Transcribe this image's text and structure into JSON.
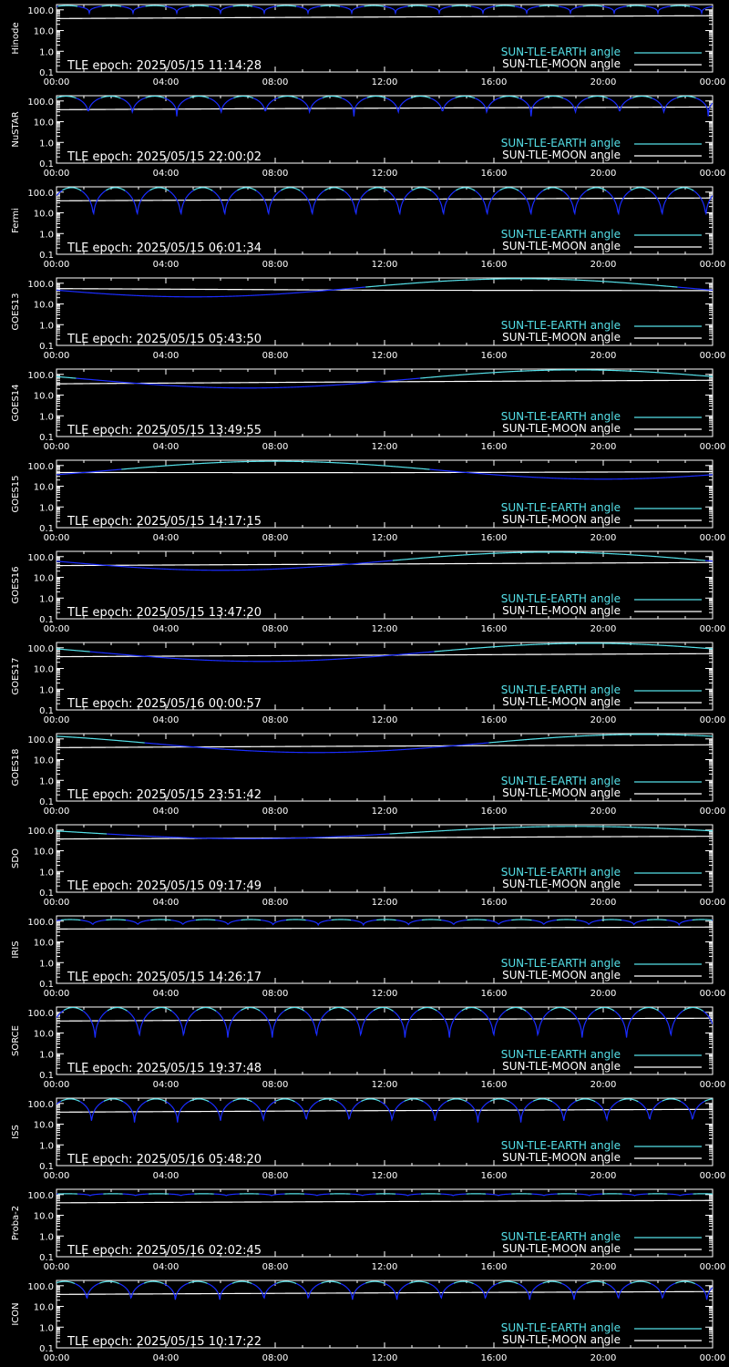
{
  "chart_data": {
    "type": "line",
    "x_unit": "hours (UT) on 2025-05-15",
    "x_ticks": [
      "00:00",
      "04:00",
      "08:00",
      "12:00",
      "16:00",
      "20:00",
      "00:00"
    ],
    "y_scale": "log",
    "y_ticks": [
      "100.0",
      "10.0",
      "1.0",
      "0.1"
    ],
    "ylim": [
      0.1,
      180
    ],
    "legend": {
      "placement": "bottom-right",
      "earth_label": "SUN-TLE-EARTH angle",
      "moon_label": "SUN-TLE-MOON angle"
    },
    "colors": {
      "earth_day": "#55e0e8",
      "earth_night": "#1a2cff",
      "moon": "#ffffff",
      "frame": "#ffffff",
      "background": "#000000"
    },
    "panels": [
      {
        "satellite": "Hinode",
        "epoch": "TLE epoch: 2025/05/15 11:14:28",
        "earth": {
          "model": "orbit",
          "period_h": 1.6,
          "phase_h": 0.4,
          "max": 160,
          "min": 70
        },
        "moon": [
          [
            0,
            38
          ],
          [
            12,
            45
          ],
          [
            24,
            52
          ]
        ]
      },
      {
        "satellite": "NuSTAR",
        "epoch": "TLE epoch: 2025/05/15 22:00:02",
        "earth": {
          "model": "orbit",
          "period_h": 1.62,
          "phase_h": 0.35,
          "max": 170,
          "min": 18
        },
        "moon": [
          [
            0,
            38
          ],
          [
            12,
            45
          ],
          [
            24,
            51
          ]
        ]
      },
      {
        "satellite": "Fermi",
        "epoch": "TLE epoch: 2025/05/15 06:01:34",
        "earth": {
          "model": "orbit",
          "period_h": 1.6,
          "phase_h": 0.55,
          "max": 165,
          "min": 3.5
        },
        "moon": [
          [
            0,
            38
          ],
          [
            12,
            45
          ],
          [
            24,
            52
          ]
        ]
      },
      {
        "satellite": "GOES13",
        "epoch": "TLE epoch: 2025/05/15 05:43:50",
        "earth": {
          "model": "daily",
          "min_time_h": 5.0,
          "max": 165,
          "min": 22
        },
        "moon": [
          [
            0,
            55
          ],
          [
            12,
            46
          ],
          [
            24,
            44
          ]
        ]
      },
      {
        "satellite": "GOES14",
        "epoch": "TLE epoch: 2025/05/15 13:49:55",
        "earth": {
          "model": "daily",
          "min_time_h": 7.0,
          "max": 165,
          "min": 22
        },
        "moon": [
          [
            0,
            35
          ],
          [
            12,
            44
          ],
          [
            24,
            52
          ]
        ]
      },
      {
        "satellite": "GOES15",
        "epoch": "TLE epoch: 2025/05/15 14:17:15",
        "earth": {
          "model": "daily",
          "min_time_h": 20.0,
          "max": 160,
          "min": 22
        },
        "moon": [
          [
            0,
            46
          ],
          [
            12,
            45
          ],
          [
            24,
            50
          ]
        ]
      },
      {
        "satellite": "GOES16",
        "epoch": "TLE epoch: 2025/05/15 13:47:20",
        "earth": {
          "model": "daily",
          "min_time_h": 6.0,
          "max": 165,
          "min": 22
        },
        "moon": [
          [
            0,
            37
          ],
          [
            12,
            44
          ],
          [
            24,
            52
          ]
        ]
      },
      {
        "satellite": "GOES17",
        "epoch": "TLE epoch: 2025/05/16 00:00:57",
        "earth": {
          "model": "daily",
          "min_time_h": 7.5,
          "max": 165,
          "min": 22
        },
        "moon": [
          [
            0,
            37
          ],
          [
            12,
            44
          ],
          [
            24,
            52
          ]
        ]
      },
      {
        "satellite": "GOES18",
        "epoch": "TLE epoch: 2025/05/15 23:51:42",
        "earth": {
          "model": "daily",
          "min_time_h": 9.5,
          "max": 165,
          "min": 22
        },
        "moon": [
          [
            0,
            38
          ],
          [
            12,
            45
          ],
          [
            24,
            52
          ]
        ]
      },
      {
        "satellite": "SDO",
        "epoch": "TLE epoch: 2025/05/15 09:17:49",
        "earth": {
          "model": "daily",
          "min_time_h": 7.0,
          "max": 150,
          "min": 38
        },
        "moon": [
          [
            0,
            37
          ],
          [
            12,
            43
          ],
          [
            24,
            50
          ]
        ]
      },
      {
        "satellite": "IRIS",
        "epoch": "TLE epoch: 2025/05/15 14:26:17",
        "earth": {
          "model": "orbit",
          "period_h": 1.65,
          "phase_h": 0.5,
          "max": 120,
          "min": 60
        },
        "moon": [
          [
            0,
            42
          ],
          [
            12,
            46
          ],
          [
            24,
            52
          ]
        ]
      },
      {
        "satellite": "SORCE",
        "epoch": "TLE epoch: 2025/05/15 19:37:48",
        "earth": {
          "model": "orbit",
          "period_h": 1.62,
          "phase_h": 0.6,
          "max": 170,
          "min": 3.0
        },
        "moon": [
          [
            0,
            38
          ],
          [
            12,
            45
          ],
          [
            24,
            52
          ]
        ]
      },
      {
        "satellite": "ISS",
        "epoch": "TLE epoch: 2025/05/16 05:48:20",
        "earth": {
          "model": "orbit",
          "period_h": 1.57,
          "phase_h": 0.5,
          "max": 165,
          "min": 8
        },
        "moon": [
          [
            0,
            38
          ],
          [
            12,
            45
          ],
          [
            24,
            52
          ]
        ]
      },
      {
        "satellite": "Proba-2",
        "epoch": "TLE epoch: 2025/05/16 02:02:45",
        "earth": {
          "model": "orbit",
          "period_h": 1.66,
          "phase_h": 0.4,
          "max": 110,
          "min": 85
        },
        "moon": [
          [
            0,
            40
          ],
          [
            12,
            46
          ],
          [
            24,
            52
          ]
        ]
      },
      {
        "satellite": "ICON",
        "epoch": "TLE epoch: 2025/05/15 10:17:22",
        "earth": {
          "model": "orbit",
          "period_h": 1.62,
          "phase_h": 0.3,
          "max": 160,
          "min": 14
        },
        "moon": [
          [
            0,
            38
          ],
          [
            12,
            45
          ],
          [
            24,
            52
          ]
        ]
      }
    ]
  }
}
